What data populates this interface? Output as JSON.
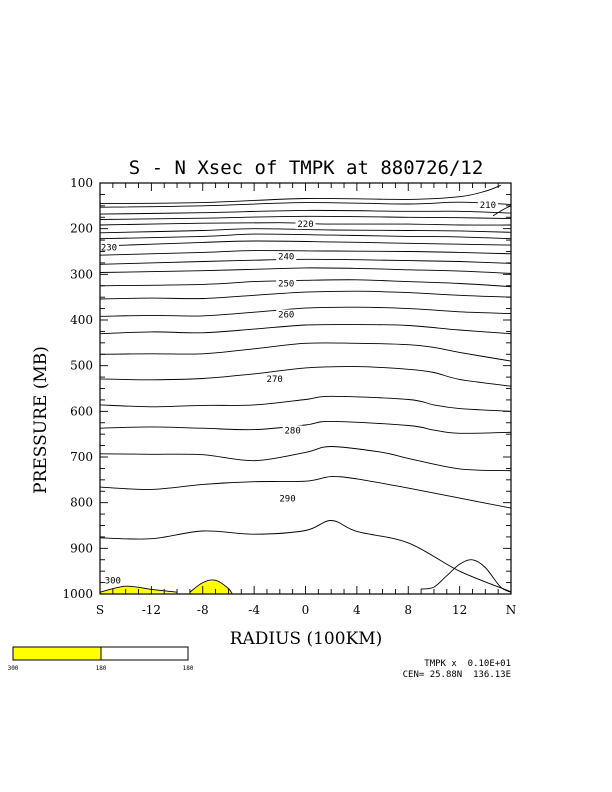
{
  "chart_data": {
    "type": "contour",
    "title": "S - N Xsec of TMPK at 880726/12",
    "xlabel": "RADIUS (100KM)",
    "ylabel": "PRESSURE (MB)",
    "x_range": [
      -16,
      16
    ],
    "y_range": [
      1000,
      100
    ],
    "x_ticks": [
      {
        "value": -16,
        "label": "S"
      },
      {
        "value": -12,
        "label": "-12"
      },
      {
        "value": -8,
        "label": "-8"
      },
      {
        "value": -4,
        "label": "-4"
      },
      {
        "value": 0,
        "label": "0"
      },
      {
        "value": 4,
        "label": "4"
      },
      {
        "value": 8,
        "label": "8"
      },
      {
        "value": 12,
        "label": "12"
      },
      {
        "value": 16,
        "label": "N"
      }
    ],
    "y_ticks": [
      "100",
      "200",
      "300",
      "400",
      "500",
      "600",
      "700",
      "800",
      "900",
      "1000"
    ],
    "contour_labels": [
      {
        "text": "210",
        "x": 14.2,
        "y": 148
      },
      {
        "text": "220",
        "x": 0,
        "y": 190
      },
      {
        "text": "230",
        "x": -15.3,
        "y": 241
      },
      {
        "text": "240",
        "x": -1.5,
        "y": 261
      },
      {
        "text": "250",
        "x": -1.5,
        "y": 320
      },
      {
        "text": "260",
        "x": -1.5,
        "y": 388
      },
      {
        "text": "270",
        "x": -2.4,
        "y": 529
      },
      {
        "text": "280",
        "x": -1.0,
        "y": 642
      },
      {
        "text": "290",
        "x": -1.4,
        "y": 791
      },
      {
        "text": "300",
        "x": -15.0,
        "y": 970
      }
    ],
    "contours": [
      [
        [
          -16,
          145
        ],
        [
          -8,
          143
        ],
        [
          0,
          134
        ],
        [
          8,
          136
        ],
        [
          12,
          130
        ],
        [
          14,
          118
        ],
        [
          15.2,
          105
        ]
      ],
      [
        [
          14.6,
          172
        ],
        [
          15.4,
          158
        ],
        [
          16,
          150
        ]
      ],
      [
        [
          -16,
          153
        ],
        [
          -8,
          150
        ],
        [
          0,
          143
        ],
        [
          8,
          146
        ],
        [
          12,
          142
        ],
        [
          16,
          147
        ]
      ],
      [
        [
          -16,
          168
        ],
        [
          -8,
          165
        ],
        [
          0,
          160
        ],
        [
          8,
          162
        ],
        [
          12,
          162
        ],
        [
          16,
          166
        ]
      ],
      [
        [
          -16,
          180
        ],
        [
          -8,
          177
        ],
        [
          0,
          173
        ],
        [
          8,
          175
        ],
        [
          12,
          176
        ],
        [
          16,
          178
        ]
      ],
      [
        [
          -16,
          192
        ],
        [
          -8,
          188
        ],
        [
          -2,
          187
        ],
        [
          2,
          190
        ],
        [
          8,
          190
        ],
        [
          12,
          192
        ],
        [
          16,
          192
        ]
      ],
      [
        [
          -16,
          209
        ],
        [
          -8,
          204
        ],
        [
          -4,
          200
        ],
        [
          2,
          203
        ],
        [
          8,
          204
        ],
        [
          12,
          205
        ],
        [
          16,
          208
        ]
      ],
      [
        [
          -16,
          222
        ],
        [
          -8,
          217
        ],
        [
          -4,
          212
        ],
        [
          2,
          214
        ],
        [
          8,
          217
        ],
        [
          12,
          218
        ],
        [
          16,
          222
        ]
      ],
      [
        [
          -16,
          238
        ],
        [
          -12,
          234
        ],
        [
          -8,
          230
        ],
        [
          -4,
          227
        ],
        [
          2,
          229
        ],
        [
          8,
          232
        ],
        [
          12,
          234
        ],
        [
          16,
          236
        ]
      ],
      [
        [
          -16,
          258
        ],
        [
          -8,
          252
        ],
        [
          -4,
          248
        ],
        [
          2,
          249
        ],
        [
          8,
          250
        ],
        [
          12,
          252
        ],
        [
          16,
          255
        ]
      ],
      [
        [
          -16,
          278
        ],
        [
          -8,
          272
        ],
        [
          -4,
          269
        ],
        [
          0,
          267
        ],
        [
          4,
          268
        ],
        [
          8,
          270
        ],
        [
          12,
          272
        ],
        [
          16,
          276
        ]
      ],
      [
        [
          -16,
          296
        ],
        [
          -8,
          292
        ],
        [
          -4,
          289
        ],
        [
          0,
          286
        ],
        [
          4,
          287
        ],
        [
          8,
          290
        ],
        [
          12,
          293
        ],
        [
          16,
          298
        ]
      ],
      [
        [
          -16,
          325
        ],
        [
          -8,
          322
        ],
        [
          -4,
          316
        ],
        [
          0,
          313
        ],
        [
          4,
          312
        ],
        [
          8,
          316
        ],
        [
          12,
          320
        ],
        [
          16,
          327
        ]
      ],
      [
        [
          -16,
          354
        ],
        [
          -12,
          352
        ],
        [
          -8,
          353
        ],
        [
          -4,
          346
        ],
        [
          0,
          339
        ],
        [
          4,
          337
        ],
        [
          8,
          340
        ],
        [
          12,
          346
        ],
        [
          16,
          350
        ]
      ],
      [
        [
          -16,
          392
        ],
        [
          -12,
          390
        ],
        [
          -8,
          391
        ],
        [
          -4,
          383
        ],
        [
          0,
          374
        ],
        [
          4,
          372
        ],
        [
          8,
          375
        ],
        [
          12,
          382
        ],
        [
          16,
          386
        ]
      ],
      [
        [
          -16,
          430
        ],
        [
          -12,
          426
        ],
        [
          -8,
          428
        ],
        [
          -4,
          420
        ],
        [
          0,
          411
        ],
        [
          4,
          410
        ],
        [
          8,
          412
        ],
        [
          12,
          422
        ],
        [
          16,
          430
        ]
      ],
      [
        [
          -16,
          475
        ],
        [
          -12,
          474
        ],
        [
          -8,
          474
        ],
        [
          -4,
          463
        ],
        [
          0,
          451
        ],
        [
          4,
          451
        ],
        [
          8,
          454
        ],
        [
          10,
          460
        ],
        [
          12,
          471
        ],
        [
          16,
          490
        ]
      ],
      [
        [
          -16,
          529
        ],
        [
          -12,
          531
        ],
        [
          -8,
          528
        ],
        [
          -4,
          518
        ],
        [
          0,
          505
        ],
        [
          4,
          502
        ],
        [
          8,
          508
        ],
        [
          10,
          515
        ],
        [
          12,
          530
        ],
        [
          16,
          545
        ]
      ],
      [
        [
          -16,
          586
        ],
        [
          -12,
          590
        ],
        [
          -8,
          587
        ],
        [
          -4,
          586
        ],
        [
          0,
          574
        ],
        [
          2,
          567
        ],
        [
          8,
          574
        ],
        [
          10,
          586
        ],
        [
          12,
          594
        ],
        [
          16,
          600
        ]
      ],
      [
        [
          -16,
          637
        ],
        [
          -12,
          634
        ],
        [
          -8,
          637
        ],
        [
          -4,
          640
        ],
        [
          0,
          630
        ],
        [
          2,
          622
        ],
        [
          8,
          631
        ],
        [
          10,
          641
        ],
        [
          12,
          648
        ],
        [
          16,
          646
        ]
      ],
      [
        [
          -16,
          693
        ],
        [
          -12,
          694
        ],
        [
          -8,
          695
        ],
        [
          -4,
          708
        ],
        [
          0,
          690
        ],
        [
          2,
          677
        ],
        [
          6,
          690
        ],
        [
          8,
          703
        ],
        [
          12,
          726
        ],
        [
          16,
          730
        ]
      ],
      [
        [
          -16,
          766
        ],
        [
          -12,
          771
        ],
        [
          -8,
          760
        ],
        [
          -4,
          754
        ],
        [
          0,
          753
        ],
        [
          2,
          743
        ],
        [
          4,
          748
        ],
        [
          8,
          768
        ],
        [
          12,
          790
        ],
        [
          16,
          812
        ]
      ],
      [
        [
          -16,
          877
        ],
        [
          -12,
          879
        ],
        [
          -8,
          862
        ],
        [
          -4,
          869
        ],
        [
          0,
          861
        ],
        [
          2,
          839
        ],
        [
          4,
          863
        ],
        [
          8,
          888
        ],
        [
          12,
          950
        ],
        [
          16,
          995
        ]
      ],
      [
        [
          9,
          989
        ],
        [
          10,
          985
        ],
        [
          11,
          960
        ],
        [
          12,
          935
        ],
        [
          13,
          925
        ],
        [
          14,
          942
        ],
        [
          15.2,
          985
        ],
        [
          16,
          996
        ]
      ],
      [
        [
          -16,
          996
        ],
        [
          -14,
          983
        ],
        [
          -12,
          990
        ],
        [
          -10,
          996
        ]
      ],
      [
        [
          -9,
          996
        ],
        [
          -8,
          975
        ],
        [
          -7,
          970
        ],
        [
          -6,
          988
        ],
        [
          -5.7,
          1000
        ]
      ]
    ],
    "shaded_value": 300,
    "shaded_regions": [
      [
        [
          -16,
          996
        ],
        [
          -14,
          983
        ],
        [
          -12,
          990
        ],
        [
          -10,
          996
        ],
        [
          -16,
          1000
        ]
      ],
      [
        [
          -9,
          996
        ],
        [
          -8,
          975
        ],
        [
          -7,
          970
        ],
        [
          -6,
          988
        ],
        [
          -5.7,
          1000
        ],
        [
          -9,
          1000
        ]
      ]
    ],
    "colorbar": {
      "labels": [
        "300",
        "180",
        "180"
      ],
      "colors": [
        "#ffff00",
        "#ffffff"
      ]
    },
    "footer": {
      "line1": "TMPK x  0.10E+01",
      "line2": "CEN= 25.88N  136.13E"
    }
  }
}
